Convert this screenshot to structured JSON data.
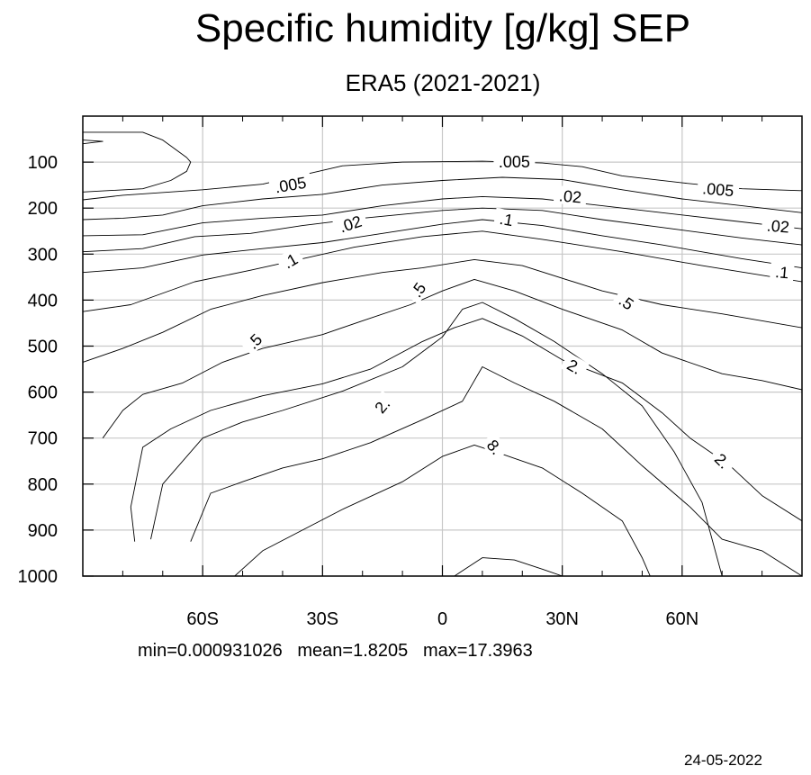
{
  "chart_data": {
    "type": "contour",
    "title": "Specific humidity [g/kg] SEP",
    "subtitle": "ERA5 (2021-2021)",
    "xlim": [
      -90,
      90
    ],
    "ylim": [
      1000,
      0
    ],
    "x_ticks": [
      {
        "value": -60,
        "label": "60S"
      },
      {
        "value": -30,
        "label": "30S"
      },
      {
        "value": 0,
        "label": "0"
      },
      {
        "value": 30,
        "label": "30N"
      },
      {
        "value": 60,
        "label": "60N"
      }
    ],
    "y_ticks": [
      {
        "value": 100,
        "label": "100"
      },
      {
        "value": 200,
        "label": "200"
      },
      {
        "value": 300,
        "label": "300"
      },
      {
        "value": 400,
        "label": "400"
      },
      {
        "value": 500,
        "label": "500"
      },
      {
        "value": 600,
        "label": "600"
      },
      {
        "value": 700,
        "label": "700"
      },
      {
        "value": 800,
        "label": "800"
      },
      {
        "value": 900,
        "label": "900"
      },
      {
        "value": 1000,
        "label": "1000"
      }
    ],
    "grid": true,
    "stats": {
      "min": "0.000931026",
      "mean": "1.8205",
      "max": "17.3963"
    },
    "contour_labels": [
      {
        "text": ".005",
        "lat": -38,
        "p": 150,
        "rot": -10
      },
      {
        "text": ".005",
        "lat": 18,
        "p": 100,
        "rot": 0
      },
      {
        "text": ".005",
        "lat": 69,
        "p": 160,
        "rot": 5
      },
      {
        "text": ".02",
        "lat": -23,
        "p": 235,
        "rot": -18
      },
      {
        "text": ".02",
        "lat": 32,
        "p": 175,
        "rot": 5
      },
      {
        "text": ".02",
        "lat": 84,
        "p": 240,
        "rot": 5
      },
      {
        "text": ".1",
        "lat": -38,
        "p": 315,
        "rot": -30
      },
      {
        "text": ".1",
        "lat": 16,
        "p": 225,
        "rot": 10
      },
      {
        "text": ".1",
        "lat": 85,
        "p": 340,
        "rot": 5
      },
      {
        "text": ".5",
        "lat": -47,
        "p": 490,
        "rot": -45
      },
      {
        "text": ".5",
        "lat": -6,
        "p": 378,
        "rot": -55
      },
      {
        "text": ".5",
        "lat": 46,
        "p": 405,
        "rot": 35
      },
      {
        "text": "2.",
        "lat": -15,
        "p": 630,
        "rot": -50
      },
      {
        "text": "2.",
        "lat": 33,
        "p": 545,
        "rot": 30
      },
      {
        "text": "2.",
        "lat": 70,
        "p": 750,
        "rot": 45
      },
      {
        "text": "8.",
        "lat": 13,
        "p": 720,
        "rot": 50
      }
    ],
    "contours": [
      {
        "level": 0.001,
        "points": [
          [
            -90,
            35
          ],
          [
            -75,
            35
          ],
          [
            -70,
            52
          ],
          [
            -64,
            90
          ],
          [
            -63,
            100
          ],
          [
            -64,
            120
          ],
          [
            -68,
            140
          ],
          [
            -75,
            158
          ],
          [
            -90,
            165
          ]
        ]
      },
      {
        "level": 0.001,
        "points": [
          [
            -90,
            52
          ],
          [
            -85,
            55
          ],
          [
            -90,
            60
          ]
        ]
      },
      {
        "level": 0.005,
        "points": [
          [
            -90,
            182
          ],
          [
            -80,
            172
          ],
          [
            -60,
            160
          ],
          [
            -45,
            148
          ],
          [
            -35,
            128
          ],
          [
            -25,
            108
          ],
          [
            -10,
            100
          ],
          [
            10,
            98
          ],
          [
            25,
            102
          ],
          [
            35,
            110
          ],
          [
            45,
            130
          ],
          [
            60,
            145
          ],
          [
            75,
            158
          ],
          [
            90,
            162
          ]
        ]
      },
      {
        "level": 0.02,
        "points": [
          [
            -90,
            225
          ],
          [
            -80,
            222
          ],
          [
            -70,
            215
          ],
          [
            -60,
            195
          ],
          [
            -45,
            180
          ],
          [
            -30,
            170
          ],
          [
            -15,
            150
          ],
          [
            0,
            140
          ],
          [
            15,
            133
          ],
          [
            30,
            138
          ],
          [
            45,
            160
          ],
          [
            60,
            180
          ],
          [
            75,
            195
          ],
          [
            90,
            210
          ]
        ]
      },
      {
        "level": 0.02,
        "points": [
          [
            -90,
            260
          ],
          [
            -75,
            258
          ],
          [
            -60,
            232
          ],
          [
            -45,
            222
          ],
          [
            -30,
            215
          ],
          [
            -15,
            195
          ],
          [
            0,
            180
          ],
          [
            10,
            175
          ],
          [
            25,
            180
          ],
          [
            40,
            195
          ],
          [
            55,
            210
          ],
          [
            70,
            225
          ],
          [
            90,
            245
          ]
        ]
      },
      {
        "level": 0.1,
        "points": [
          [
            -90,
            295
          ],
          [
            -75,
            288
          ],
          [
            -62,
            262
          ],
          [
            -48,
            255
          ],
          [
            -35,
            238
          ],
          [
            -20,
            222
          ],
          [
            0,
            205
          ],
          [
            10,
            200
          ],
          [
            25,
            205
          ],
          [
            40,
            225
          ],
          [
            55,
            242
          ],
          [
            75,
            265
          ],
          [
            90,
            280
          ]
        ]
      },
      {
        "level": 0.1,
        "points": [
          [
            -90,
            340
          ],
          [
            -75,
            330
          ],
          [
            -60,
            302
          ],
          [
            -45,
            288
          ],
          [
            -30,
            275
          ],
          [
            -15,
            255
          ],
          [
            0,
            235
          ],
          [
            10,
            225
          ],
          [
            25,
            238
          ],
          [
            40,
            260
          ],
          [
            55,
            280
          ],
          [
            75,
            310
          ],
          [
            90,
            330
          ]
        ]
      },
      {
        "level": 0.5,
        "points": [
          [
            -90,
            425
          ],
          [
            -78,
            410
          ],
          [
            -62,
            360
          ],
          [
            -48,
            335
          ],
          [
            -35,
            310
          ],
          [
            -22,
            285
          ],
          [
            -5,
            262
          ],
          [
            10,
            250
          ],
          [
            25,
            268
          ],
          [
            45,
            295
          ],
          [
            65,
            325
          ],
          [
            90,
            360
          ]
        ]
      },
      {
        "level": 0.5,
        "points": [
          [
            -90,
            535
          ],
          [
            -80,
            505
          ],
          [
            -70,
            470
          ],
          [
            -58,
            420
          ],
          [
            -45,
            390
          ],
          [
            -30,
            362
          ],
          [
            -15,
            340
          ],
          [
            -5,
            330
          ],
          [
            8,
            312
          ],
          [
            20,
            325
          ],
          [
            40,
            380
          ],
          [
            55,
            410
          ],
          [
            70,
            430
          ],
          [
            90,
            460
          ]
        ]
      },
      {
        "level": 2,
        "points": [
          [
            -85,
            700
          ],
          [
            -80,
            640
          ],
          [
            -75,
            605
          ],
          [
            -65,
            580
          ],
          [
            -55,
            535
          ],
          [
            -45,
            505
          ],
          [
            -30,
            475
          ],
          [
            -20,
            445
          ],
          [
            -8,
            410
          ],
          [
            0,
            380
          ],
          [
            8,
            355
          ],
          [
            18,
            380
          ],
          [
            30,
            420
          ],
          [
            45,
            465
          ],
          [
            55,
            515
          ],
          [
            70,
            560
          ],
          [
            80,
            575
          ],
          [
            90,
            595
          ]
        ]
      },
      {
        "level": 2,
        "points": [
          [
            -77,
            925
          ],
          [
            -78,
            850
          ],
          [
            -75,
            720
          ],
          [
            -68,
            680
          ],
          [
            -58,
            640
          ],
          [
            -45,
            608
          ],
          [
            -30,
            582
          ],
          [
            -18,
            550
          ],
          [
            -5,
            490
          ],
          [
            3,
            460
          ],
          [
            10,
            440
          ],
          [
            20,
            478
          ],
          [
            30,
            530
          ],
          [
            45,
            580
          ],
          [
            55,
            645
          ],
          [
            62,
            700
          ],
          [
            72,
            760
          ],
          [
            80,
            825
          ],
          [
            90,
            880
          ]
        ]
      },
      {
        "level": 4,
        "points": [
          [
            -73,
            920
          ],
          [
            -70,
            800
          ],
          [
            -60,
            700
          ],
          [
            -50,
            665
          ],
          [
            -40,
            640
          ],
          [
            -25,
            598
          ],
          [
            -10,
            545
          ],
          [
            0,
            480
          ],
          [
            5,
            420
          ],
          [
            10,
            405
          ],
          [
            18,
            440
          ],
          [
            28,
            490
          ],
          [
            40,
            560
          ],
          [
            50,
            630
          ],
          [
            58,
            730
          ],
          [
            65,
            840
          ],
          [
            70,
            1000
          ]
        ]
      },
      {
        "level": 8,
        "points": [
          [
            -63,
            925
          ],
          [
            -58,
            820
          ],
          [
            -50,
            795
          ],
          [
            -40,
            765
          ],
          [
            -30,
            745
          ],
          [
            -18,
            710
          ],
          [
            -5,
            660
          ],
          [
            5,
            620
          ],
          [
            10,
            545
          ],
          [
            18,
            580
          ],
          [
            28,
            620
          ],
          [
            40,
            680
          ],
          [
            50,
            760
          ],
          [
            62,
            850
          ],
          [
            70,
            920
          ],
          [
            80,
            945
          ],
          [
            90,
            1000
          ]
        ]
      },
      {
        "level": 12,
        "points": [
          [
            -52,
            1000
          ],
          [
            -45,
            945
          ],
          [
            -35,
            900
          ],
          [
            -25,
            855
          ],
          [
            -10,
            795
          ],
          [
            0,
            740
          ],
          [
            8,
            715
          ],
          [
            15,
            735
          ],
          [
            25,
            765
          ],
          [
            35,
            820
          ],
          [
            45,
            880
          ],
          [
            50,
            960
          ],
          [
            52,
            1000
          ]
        ]
      },
      {
        "level": 16,
        "points": [
          [
            3,
            1000
          ],
          [
            10,
            960
          ],
          [
            18,
            965
          ],
          [
            25,
            985
          ],
          [
            30,
            1000
          ]
        ]
      }
    ]
  }
}
